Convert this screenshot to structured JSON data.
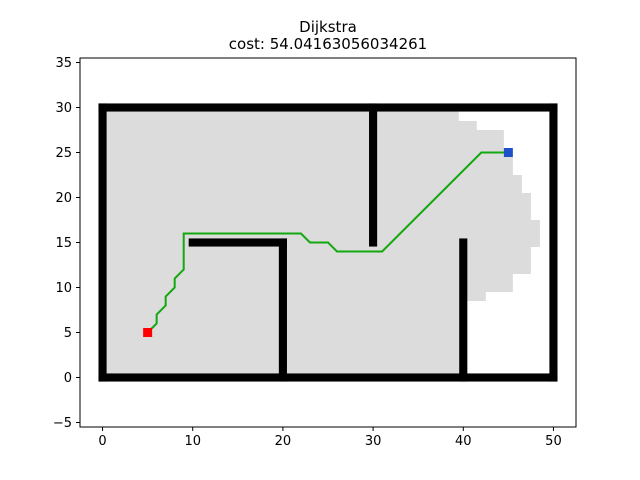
{
  "chart_data": {
    "type": "line",
    "title": "Dijkstra",
    "subtitle_prefix": "cost: ",
    "cost": "54.04163056034261",
    "xlabel": "",
    "ylabel": "",
    "xlim": [
      -2.5,
      52.5
    ],
    "ylim": [
      -5.5,
      35.5
    ],
    "x_ticks": [
      0,
      10,
      20,
      30,
      40,
      50
    ],
    "y_ticks": [
      -5,
      0,
      5,
      10,
      15,
      20,
      25,
      30,
      35
    ],
    "grid": false,
    "colors": {
      "obstacle": "#000000",
      "explored": "#dcdcdc",
      "path": "#13a80f",
      "start": "#ff0000",
      "goal": "#1f50c8"
    },
    "obstacles": [
      {
        "name": "outer-bottom",
        "x": [
          0,
          50
        ],
        "y": [
          0,
          0
        ]
      },
      {
        "name": "outer-top",
        "x": [
          0,
          50
        ],
        "y": [
          30,
          30
        ]
      },
      {
        "name": "outer-left",
        "x": [
          0,
          0
        ],
        "y": [
          0,
          30
        ]
      },
      {
        "name": "outer-right",
        "x": [
          50,
          50
        ],
        "y": [
          0,
          30
        ]
      },
      {
        "name": "inner-wall-a-top",
        "x": [
          10,
          20
        ],
        "y": [
          15,
          15
        ]
      },
      {
        "name": "inner-wall-a-vertical",
        "x": [
          20,
          20
        ],
        "y": [
          0,
          15
        ]
      },
      {
        "name": "inner-wall-b",
        "x": [
          30,
          30
        ],
        "y": [
          15,
          30
        ]
      },
      {
        "name": "inner-wall-c",
        "x": [
          40,
          40
        ],
        "y": [
          0,
          15
        ]
      }
    ],
    "explored_region": [
      [
        0,
        0
      ],
      [
        40,
        0
      ],
      [
        40,
        8.5
      ],
      [
        42.5,
        8.5
      ],
      [
        42.5,
        9.5
      ],
      [
        45.5,
        9.5
      ],
      [
        45.5,
        11.5
      ],
      [
        47.5,
        11.5
      ],
      [
        47.5,
        14.5
      ],
      [
        48.5,
        14.5
      ],
      [
        48.5,
        17.5
      ],
      [
        47.5,
        17.5
      ],
      [
        47.5,
        20.5
      ],
      [
        46.5,
        20.5
      ],
      [
        46.5,
        22.5
      ],
      [
        45.5,
        22.5
      ],
      [
        45.5,
        24.5
      ],
      [
        44.5,
        24.5
      ],
      [
        44.5,
        27.5
      ],
      [
        41.5,
        27.5
      ],
      [
        41.5,
        28.5
      ],
      [
        39.5,
        28.5
      ],
      [
        39.5,
        30
      ],
      [
        0,
        30
      ]
    ],
    "path": {
      "name": "dijkstra-path",
      "x": [
        5,
        6,
        6,
        7,
        7,
        8,
        8,
        9,
        9,
        22,
        23,
        25,
        26,
        31,
        42,
        45
      ],
      "y": [
        5,
        6,
        7,
        8,
        9,
        10,
        11,
        12,
        16,
        16,
        15,
        15,
        14,
        14,
        25,
        25
      ]
    },
    "start": {
      "x": 5,
      "y": 5
    },
    "goal": {
      "x": 45,
      "y": 25
    }
  }
}
